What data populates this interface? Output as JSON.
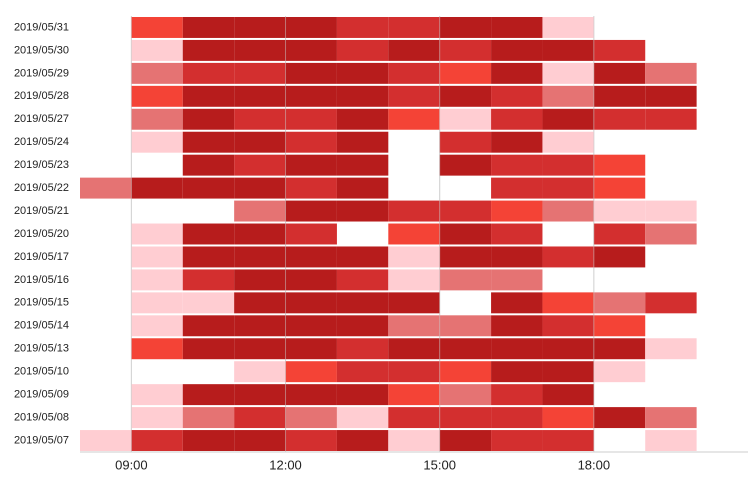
{
  "chart_data": {
    "type": "heatmap",
    "rows": [
      "2019/05/31",
      "2019/05/30",
      "2019/05/29",
      "2019/05/28",
      "2019/05/27",
      "2019/05/24",
      "2019/05/23",
      "2019/05/22",
      "2019/05/21",
      "2019/05/20",
      "2019/05/17",
      "2019/05/16",
      "2019/05/15",
      "2019/05/14",
      "2019/05/13",
      "2019/05/10",
      "2019/05/09",
      "2019/05/08",
      "2019/05/07"
    ],
    "bins": [
      8,
      9,
      10,
      11,
      12,
      13,
      14,
      15,
      16,
      17,
      18,
      19,
      20
    ],
    "values": [
      [
        null,
        3,
        5,
        5,
        5,
        4,
        4,
        5,
        5,
        1,
        null,
        null
      ],
      [
        null,
        1,
        5,
        5,
        5,
        4,
        5,
        4,
        5,
        5,
        4,
        null
      ],
      [
        null,
        2,
        4,
        4,
        5,
        5,
        4,
        3,
        5,
        1,
        5,
        2
      ],
      [
        null,
        3,
        5,
        5,
        5,
        5,
        4,
        5,
        4,
        2,
        5,
        5
      ],
      [
        null,
        2,
        5,
        4,
        4,
        5,
        3,
        1,
        4,
        5,
        4,
        4
      ],
      [
        null,
        1,
        5,
        5,
        4,
        5,
        null,
        4,
        5,
        1,
        null,
        null
      ],
      [
        null,
        null,
        5,
        4,
        5,
        5,
        null,
        5,
        4,
        4,
        3,
        null
      ],
      [
        2,
        5,
        5,
        5,
        4,
        5,
        null,
        null,
        4,
        4,
        3,
        null
      ],
      [
        null,
        null,
        null,
        2,
        5,
        5,
        4,
        4,
        3,
        2,
        1,
        1
      ],
      [
        null,
        1,
        5,
        5,
        4,
        null,
        3,
        5,
        4,
        null,
        4,
        2
      ],
      [
        null,
        1,
        5,
        5,
        5,
        5,
        1,
        5,
        5,
        4,
        5,
        null
      ],
      [
        null,
        1,
        4,
        5,
        5,
        4,
        1,
        2,
        2,
        null,
        null,
        null
      ],
      [
        null,
        1,
        1,
        5,
        5,
        5,
        5,
        null,
        5,
        3,
        2,
        4
      ],
      [
        null,
        1,
        5,
        5,
        5,
        5,
        2,
        2,
        5,
        4,
        3,
        null
      ],
      [
        null,
        3,
        5,
        5,
        5,
        4,
        5,
        5,
        5,
        5,
        5,
        1
      ],
      [
        null,
        null,
        null,
        1,
        3,
        4,
        4,
        3,
        5,
        5,
        1,
        null
      ],
      [
        null,
        1,
        5,
        5,
        5,
        5,
        3,
        2,
        4,
        5,
        null,
        null
      ],
      [
        null,
        1,
        2,
        4,
        2,
        1,
        4,
        4,
        4,
        3,
        5,
        2
      ],
      [
        1,
        4,
        5,
        5,
        4,
        5,
        1,
        5,
        4,
        4,
        null,
        1
      ]
    ],
    "colors": [
      "#ffcdd2",
      "#e57373",
      "#f44336",
      "#d32f2f",
      "#b71c1c"
    ],
    "xlim": [
      8,
      21
    ],
    "xticks": [
      {
        "value": 9,
        "label": "09:00"
      },
      {
        "value": 12,
        "label": "12:00"
      },
      {
        "value": 15,
        "label": "15:00"
      },
      {
        "value": 18,
        "label": "18:00"
      }
    ],
    "grid": true
  }
}
